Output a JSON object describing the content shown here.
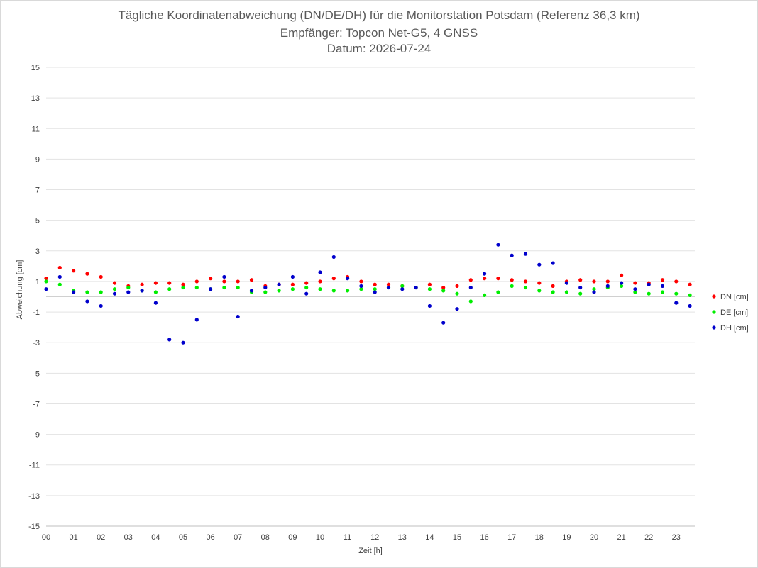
{
  "chart_data": {
    "type": "scatter",
    "title": "Tägliche Koordinatenabweichung (DN/DE/DH) für die Monitorstation Potsdam (Referenz 36,3 km)",
    "subtitle": "Empfänger: Topcon Net-G5, 4 GNSS",
    "date_line": "Datum: 2026-07-24",
    "xlabel": "Zeit [h]",
    "ylabel": "Abweichung [cm]",
    "xlim": [
      0,
      24
    ],
    "ylim": [
      -15,
      15
    ],
    "y_ticks": [
      "15",
      "13",
      "11",
      "9",
      "7",
      "5",
      "3",
      "1",
      "-1",
      "-3",
      "-5",
      "-7",
      "-9",
      "-11",
      "-13",
      "-15"
    ],
    "x_ticks": [
      "00",
      "01",
      "02",
      "03",
      "04",
      "05",
      "06",
      "07",
      "08",
      "09",
      "10",
      "11",
      "12",
      "13",
      "14",
      "15",
      "16",
      "17",
      "18",
      "19",
      "20",
      "21",
      "22",
      "23"
    ],
    "grid": true,
    "legend_position": "right",
    "series": [
      {
        "name": "DN [cm]",
        "color": "#ff0000",
        "x": [
          0,
          0.5,
          1,
          1.5,
          2,
          2.5,
          3,
          3.5,
          4,
          4.5,
          5,
          5.5,
          6,
          6.5,
          7,
          7.5,
          8,
          8.5,
          9,
          9.5,
          10,
          10.5,
          11,
          11.5,
          12,
          12.5,
          13,
          13.5,
          14,
          14.5,
          15,
          15.5,
          16,
          16.5,
          17,
          17.5,
          18,
          18.5,
          19,
          19.5,
          20,
          20.5,
          21,
          21.5,
          22,
          22.5,
          23,
          23.5
        ],
        "y": [
          1.2,
          1.9,
          1.7,
          1.5,
          1.3,
          0.9,
          0.7,
          0.8,
          0.9,
          0.9,
          0.8,
          1.0,
          1.2,
          1.0,
          1.0,
          1.1,
          0.7,
          0.8,
          0.8,
          0.9,
          1.0,
          1.2,
          1.3,
          1.0,
          0.8,
          0.8,
          0.7,
          0.6,
          0.8,
          0.6,
          0.7,
          1.1,
          1.2,
          1.2,
          1.1,
          1.0,
          0.9,
          0.7,
          1.0,
          1.1,
          1.0,
          1.0,
          1.4,
          0.9,
          0.9,
          1.1,
          1.0,
          0.8
        ]
      },
      {
        "name": "DE [cm]",
        "color": "#00ee00",
        "x": [
          0,
          0.5,
          1,
          1.5,
          2,
          2.5,
          3,
          3.5,
          4,
          4.5,
          5,
          5.5,
          6,
          6.5,
          7,
          7.5,
          8,
          8.5,
          9,
          9.5,
          10,
          10.5,
          11,
          11.5,
          12,
          12.5,
          13,
          13.5,
          14,
          14.5,
          15,
          15.5,
          16,
          16.5,
          17,
          17.5,
          18,
          18.5,
          19,
          19.5,
          20,
          20.5,
          21,
          21.5,
          22,
          22.5,
          23,
          23.5
        ],
        "y": [
          1.0,
          0.8,
          0.4,
          0.3,
          0.3,
          0.5,
          0.6,
          0.4,
          0.3,
          0.5,
          0.6,
          0.6,
          0.5,
          0.6,
          0.6,
          0.3,
          0.3,
          0.4,
          0.5,
          0.6,
          0.5,
          0.4,
          0.4,
          0.5,
          0.5,
          0.6,
          0.7,
          0.6,
          0.5,
          0.4,
          0.2,
          -0.3,
          0.1,
          0.3,
          0.7,
          0.6,
          0.4,
          0.3,
          0.3,
          0.2,
          0.5,
          0.6,
          0.7,
          0.3,
          0.2,
          0.3,
          0.2,
          0.1
        ]
      },
      {
        "name": "DH [cm]",
        "color": "#0000cc",
        "x": [
          0,
          0.5,
          1,
          1.5,
          2,
          2.5,
          3,
          3.5,
          4,
          4.5,
          5,
          5.5,
          6,
          6.5,
          7,
          7.5,
          8,
          8.5,
          9,
          9.5,
          10,
          10.5,
          11,
          11.5,
          12,
          12.5,
          13,
          13.5,
          14,
          14.5,
          15,
          15.5,
          16,
          16.5,
          17,
          17.5,
          18,
          18.5,
          19,
          19.5,
          20,
          20.5,
          21,
          21.5,
          22,
          22.5,
          23,
          23.5
        ],
        "y": [
          0.5,
          1.3,
          0.3,
          -0.3,
          -0.6,
          0.2,
          0.3,
          0.4,
          -0.4,
          -2.8,
          -3.0,
          -1.5,
          0.5,
          1.3,
          -1.3,
          0.4,
          0.6,
          0.8,
          1.3,
          0.2,
          1.6,
          2.6,
          1.2,
          0.7,
          0.3,
          0.6,
          0.5,
          0.6,
          -0.6,
          -1.7,
          -0.8,
          0.6,
          1.5,
          3.4,
          2.7,
          2.8,
          2.1,
          2.2,
          0.9,
          0.6,
          0.3,
          0.7,
          0.9,
          0.5,
          0.8,
          0.7,
          -0.4,
          -0.6
        ]
      }
    ]
  }
}
